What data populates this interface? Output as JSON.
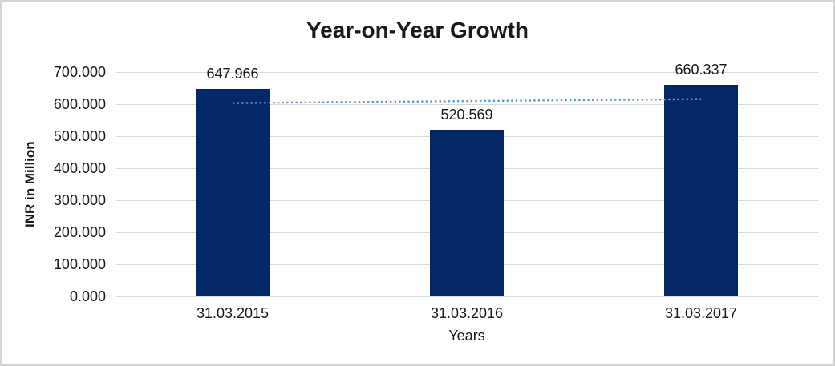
{
  "chart_data": {
    "type": "bar",
    "title": "Year-on-Year Growth",
    "xlabel": "Years",
    "ylabel": "INR in Million",
    "categories": [
      "31.03.2015",
      "31.03.2016",
      "31.03.2017"
    ],
    "values": [
      647.966,
      520.569,
      660.337
    ],
    "data_labels": [
      "647.966",
      "520.569",
      "660.337"
    ],
    "ylim": [
      0,
      700
    ],
    "ytick_labels": [
      "0.000",
      "100.000",
      "200.000",
      "300.000",
      "400.000",
      "500.000",
      "600.000",
      "700.000"
    ],
    "grid": true,
    "legend": "none",
    "trendline": {
      "type": "linear",
      "style": "dotted",
      "extent": "first bar center to last bar center"
    },
    "colors": {
      "bar": "#032767",
      "trendline": "#5B9BD5",
      "gridline": "#D9D9D9",
      "axis_line": "#BFBFBF",
      "text": "#1A1A1A",
      "border": "#D5D5D5",
      "background": "#FFFFFF"
    }
  }
}
